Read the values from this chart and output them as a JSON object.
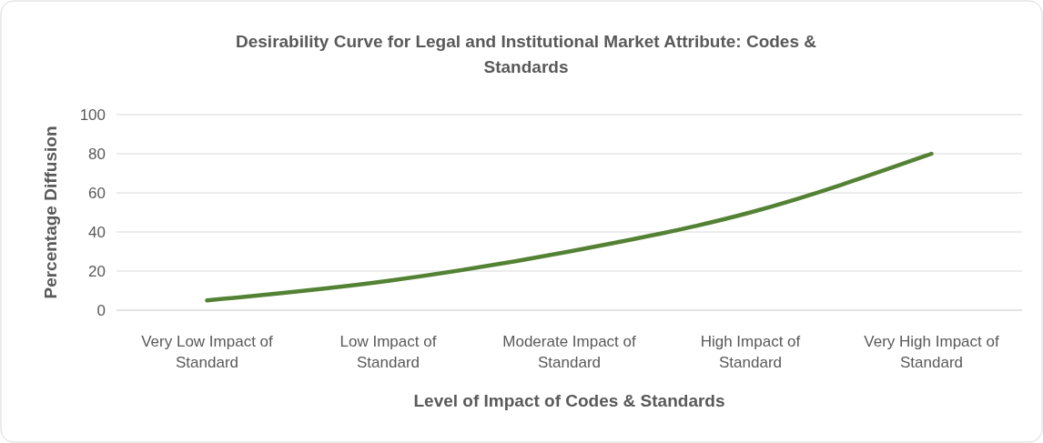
{
  "chart_data": {
    "type": "line",
    "title": "Desirability Curve for Legal and Institutional Market Attribute: Codes & Standards",
    "xlabel": "Level of Impact of Codes & Standards",
    "ylabel": "Percentage Diffusion",
    "categories": [
      "Very Low Impact of Standard",
      "Low Impact of Standard",
      "Moderate Impact of Standard",
      "High Impact of Standard",
      "Very High Impact of Standard"
    ],
    "series": [
      {
        "color": "#548235",
        "values": [
          5,
          15,
          30,
          50,
          80
        ]
      }
    ],
    "ylim": [
      0,
      100
    ],
    "yticks": [
      0,
      20,
      40,
      60,
      80,
      100
    ],
    "grid": "y",
    "marker": "none",
    "line_style": "solid"
  }
}
